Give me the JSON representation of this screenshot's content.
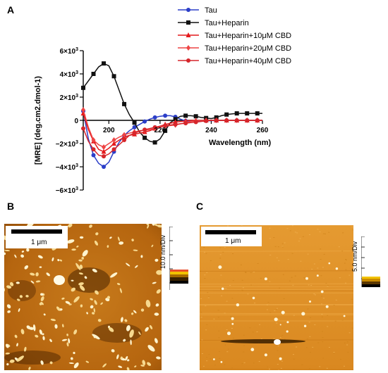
{
  "panels": {
    "a_label": "A",
    "b_label": "B",
    "c_label": "C"
  },
  "chart_data": {
    "type": "line",
    "title": "",
    "xlabel": "Wavelength (nm)",
    "ylabel": "[MRE] (deg.cm2.dmol-1)",
    "xlim": [
      190,
      260
    ],
    "ylim": [
      -6000,
      6000
    ],
    "x_ticks": [
      200,
      220,
      240,
      260
    ],
    "x_tick_labels": [
      "200",
      "220",
      "240",
      "260"
    ],
    "y_ticks": [
      6000,
      4000,
      2000,
      0,
      -2000,
      -4000,
      -6000
    ],
    "y_tick_labels": [
      {
        "mant": "6×10",
        "exp": "3"
      },
      {
        "mant": "4×10",
        "exp": "3"
      },
      {
        "mant": "2×10",
        "exp": "3"
      },
      {
        "mant": "0",
        "exp": ""
      },
      {
        "mant": "−2×10",
        "exp": "3"
      },
      {
        "mant": "−4×10",
        "exp": "3"
      },
      {
        "mant": "−6×10",
        "exp": "3"
      }
    ],
    "grid": false,
    "legend_position": "top-right",
    "series": [
      {
        "name": "Tau",
        "color": "#2b3ec8",
        "marker": "circle",
        "x": [
          190,
          192,
          194,
          196,
          198,
          200,
          202,
          204,
          206,
          208,
          210,
          212,
          214,
          216,
          218,
          220,
          222,
          224,
          226,
          228,
          230,
          232,
          234,
          236,
          238,
          240,
          242,
          244,
          246,
          248,
          250,
          252,
          254,
          256,
          258,
          260
        ],
        "y": [
          800,
          -1600,
          -3000,
          -3700,
          -4000,
          -3600,
          -2700,
          -1900,
          -1300,
          -900,
          -600,
          -350,
          -100,
          100,
          250,
          350,
          400,
          400,
          300,
          100,
          -50,
          -80,
          -80,
          -60,
          -40,
          -30,
          -20,
          -10,
          0,
          0,
          0,
          0,
          0,
          0,
          0,
          0
        ]
      },
      {
        "name": "Tau+Heparin",
        "color": "#111111",
        "marker": "square",
        "x": [
          190,
          192,
          194,
          196,
          198,
          200,
          202,
          204,
          206,
          208,
          210,
          212,
          214,
          216,
          218,
          220,
          222,
          224,
          226,
          228,
          230,
          232,
          234,
          236,
          238,
          240,
          242,
          244,
          246,
          248,
          250,
          252,
          254,
          256,
          258,
          260
        ],
        "y": [
          2800,
          3400,
          4000,
          4600,
          4900,
          4700,
          3800,
          2600,
          1400,
          500,
          -200,
          -1000,
          -1500,
          -1800,
          -1900,
          -1600,
          -900,
          -200,
          100,
          350,
          400,
          400,
          350,
          250,
          200,
          150,
          250,
          400,
          500,
          550,
          600,
          600,
          600,
          600,
          600,
          600
        ]
      },
      {
        "name": "Tau+Heparin+10μM CBD",
        "color": "#e41a1c",
        "marker": "triangle",
        "x": [
          190,
          192,
          194,
          196,
          198,
          200,
          202,
          204,
          206,
          208,
          210,
          212,
          214,
          216,
          218,
          220,
          222,
          224,
          226,
          228,
          230,
          232,
          234,
          236,
          238,
          240,
          242,
          244,
          246,
          248,
          250,
          252,
          254,
          256,
          258,
          260
        ],
        "y": [
          600,
          -800,
          -1800,
          -2500,
          -2700,
          -2400,
          -2000,
          -1700,
          -1450,
          -1300,
          -1200,
          -1100,
          -1000,
          -900,
          -700,
          -500,
          -350,
          -250,
          -150,
          -100,
          -50,
          0,
          0,
          0,
          0,
          0,
          0,
          0,
          0,
          0,
          0,
          0,
          0,
          0,
          0,
          0
        ]
      },
      {
        "name": "Tau+Heparin+20μM CBD",
        "color": "#ee4444",
        "marker": "diamond",
        "x": [
          190,
          192,
          194,
          196,
          198,
          200,
          202,
          204,
          206,
          208,
          210,
          212,
          214,
          216,
          218,
          220,
          222,
          224,
          226,
          228,
          230,
          232,
          234,
          236,
          238,
          240,
          242,
          244,
          246,
          248,
          250,
          252,
          254,
          256,
          258,
          260
        ],
        "y": [
          900,
          -600,
          -1700,
          -2100,
          -2300,
          -2000,
          -1700,
          -1450,
          -1250,
          -1100,
          -1000,
          -900,
          -850,
          -800,
          -700,
          -600,
          -500,
          -450,
          -400,
          -300,
          -200,
          -100,
          -50,
          0,
          0,
          0,
          0,
          0,
          0,
          0,
          0,
          0,
          0,
          0,
          0,
          0
        ]
      },
      {
        "name": "Tau+Heparin+40μM CBD",
        "color": "#d6262b",
        "marker": "circle",
        "x": [
          190,
          192,
          194,
          196,
          198,
          200,
          202,
          204,
          206,
          208,
          210,
          212,
          214,
          216,
          218,
          220,
          222,
          224,
          226,
          228,
          230,
          232,
          234,
          236,
          238,
          240,
          242,
          244,
          246,
          248,
          250,
          252,
          254,
          256,
          258,
          260
        ],
        "y": [
          -700,
          -1800,
          -2500,
          -3000,
          -3100,
          -2900,
          -2500,
          -2100,
          -1700,
          -1300,
          -1100,
          -950,
          -800,
          -700,
          -600,
          -500,
          -450,
          -400,
          -350,
          -300,
          -250,
          -200,
          -150,
          -100,
          -50,
          0,
          0,
          0,
          0,
          0,
          0,
          0,
          0,
          0,
          0,
          0
        ]
      }
    ]
  },
  "afm_b": {
    "scale_label": "1 μm",
    "z_label": "10.0 nm/Div"
  },
  "afm_c": {
    "scale_label": "1 μm",
    "z_label": "5.0 nm/Div"
  }
}
